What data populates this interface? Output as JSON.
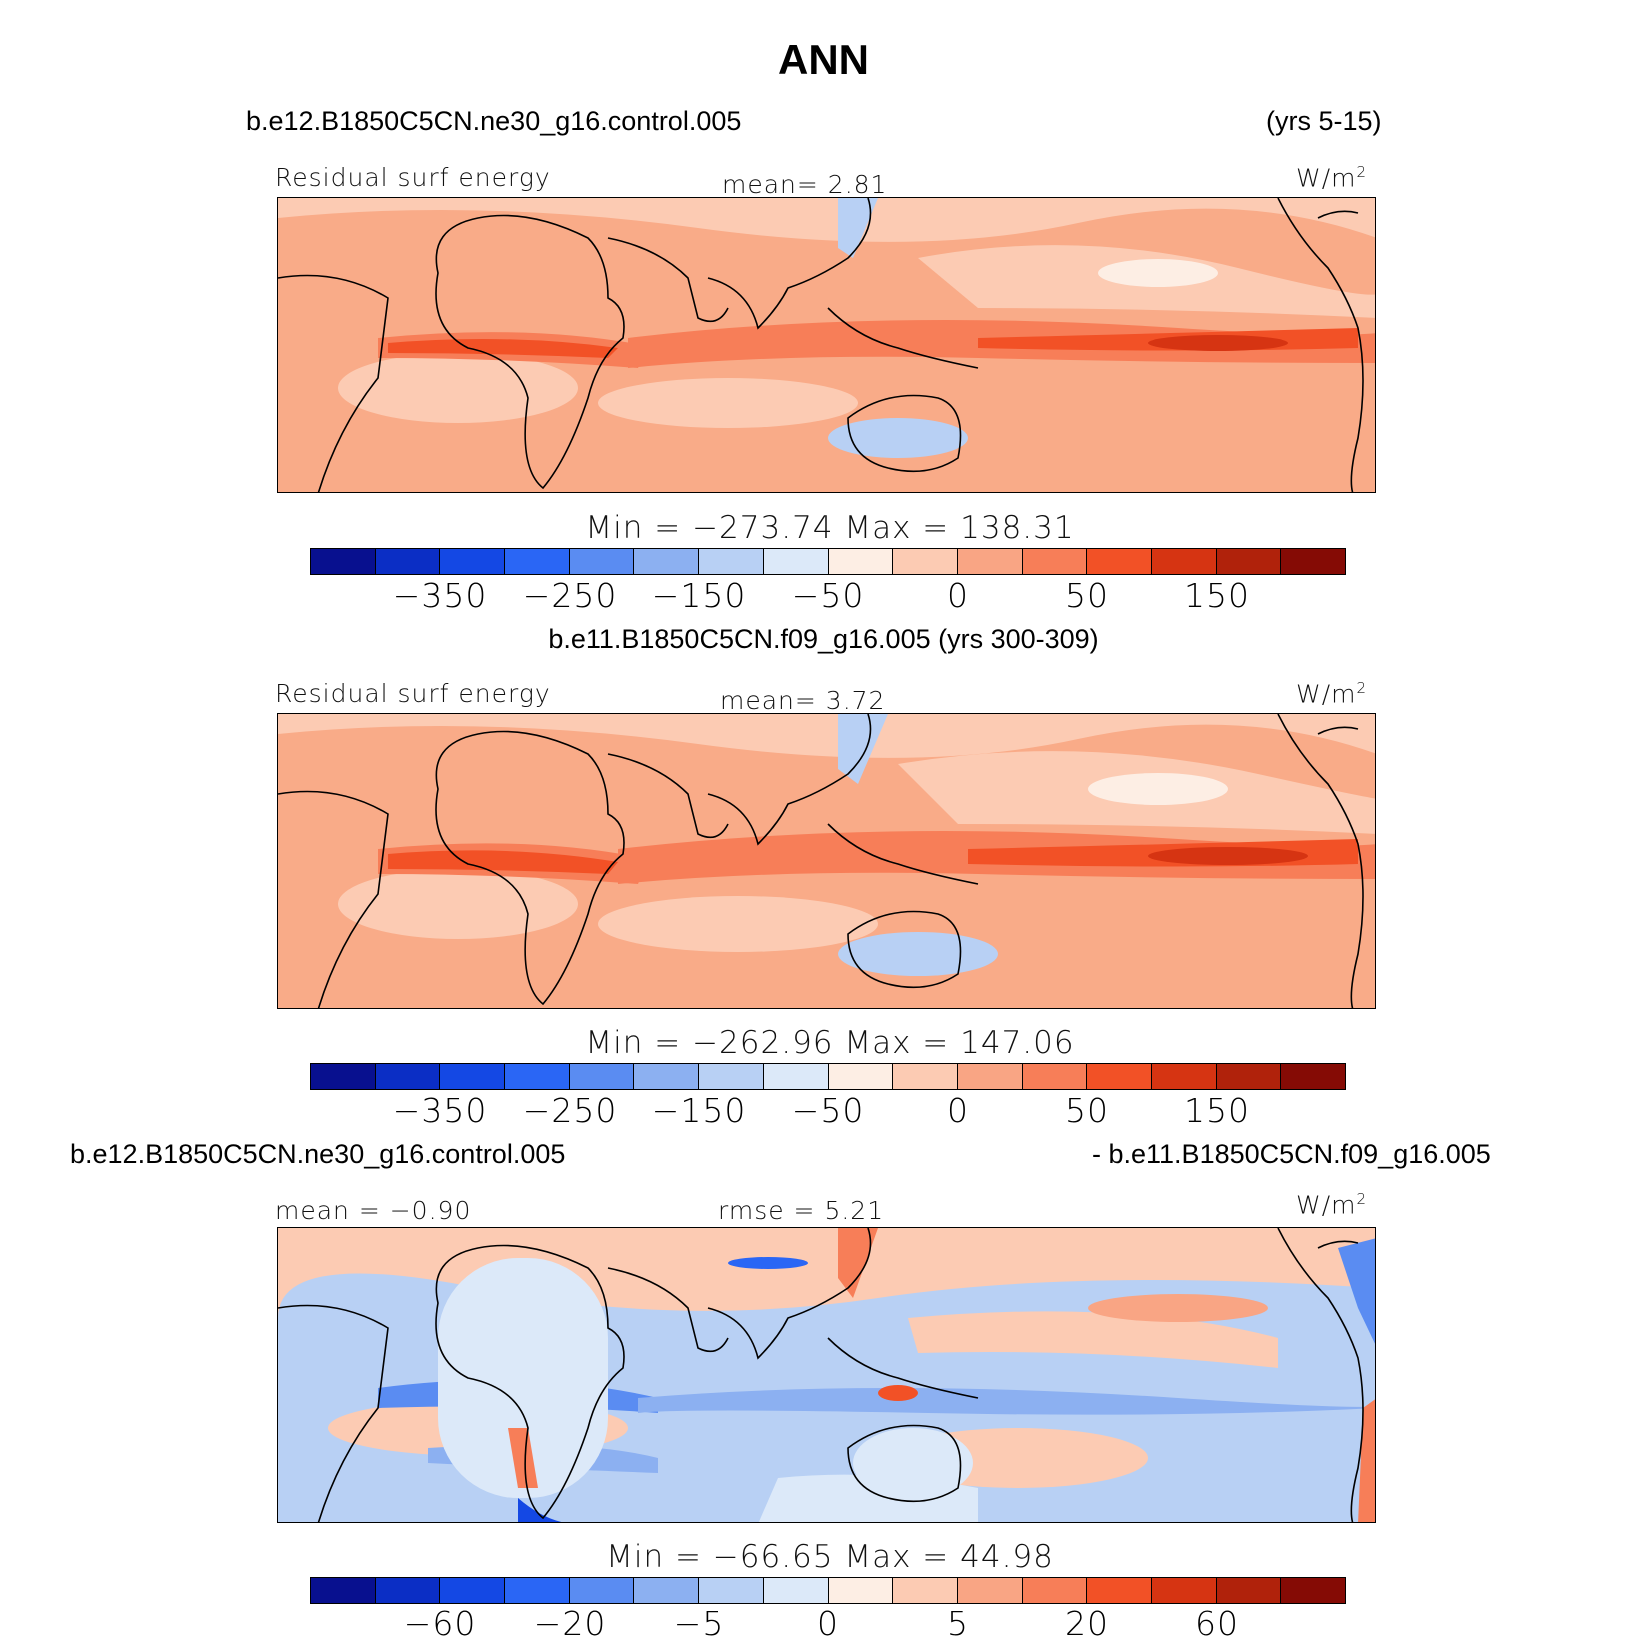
{
  "title": "ANN",
  "colors": {
    "palette": [
      "#08108f",
      "#0b2ec5",
      "#1448e4",
      "#2a66f5",
      "#5a8cf2",
      "#8cb0f1",
      "#b8d0f4",
      "#dce9f9",
      "#fdeee4",
      "#fccbb3",
      "#f9a584",
      "#f77e58",
      "#f25126",
      "#d63412",
      "#b0220b",
      "#850b05"
    ],
    "land_ocean_base": "#f9ab88"
  },
  "panels": [
    {
      "case_left": "b.e12.B1850C5CN.ne30_g16.control.005",
      "case_right": "(yrs 5-15)",
      "var_label": "Residual surf energy",
      "center_label": "mean=   2.81",
      "units": "W/m",
      "units_sup": "2",
      "minmax": "Min = −273.74 Max = 138.31",
      "ticks": [
        "−350",
        "−250",
        "−150",
        "−50",
        "0",
        "50",
        "150"
      ]
    },
    {
      "case_center": "b.e11.B1850C5CN.f09_g16.005 (yrs 300-309)",
      "var_label": "Residual surf energy",
      "center_label": "mean=   3.72",
      "units": "W/m",
      "units_sup": "2",
      "minmax": "Min = −262.96 Max = 147.06",
      "ticks": [
        "−350",
        "−250",
        "−150",
        "−50",
        "0",
        "50",
        "150"
      ]
    },
    {
      "case_left": "b.e12.B1850C5CN.ne30_g16.control.005",
      "case_right": "- b.e11.B1850C5CN.f09_g16.005",
      "var_label": "mean =  −0.90",
      "center_label": "rmse =   5.21",
      "units": "W/m",
      "units_sup": "2",
      "minmax": "Min = −66.65 Max =  44.98",
      "ticks": [
        "−60",
        "−20",
        "−5",
        "0",
        "5",
        "20",
        "60"
      ]
    }
  ]
}
